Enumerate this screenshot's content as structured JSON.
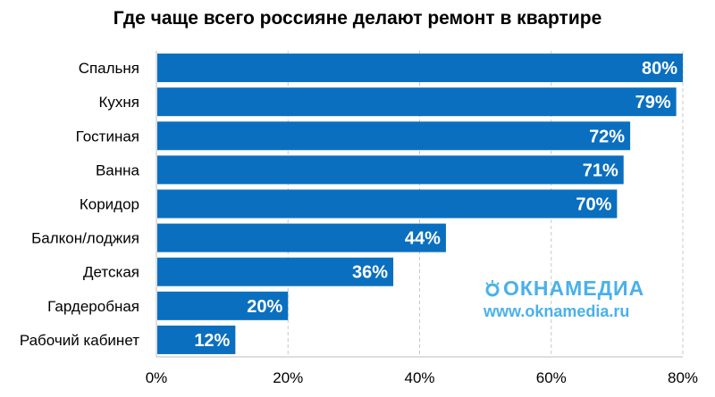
{
  "chart_data": {
    "type": "bar",
    "orientation": "horizontal",
    "title": "Где чаще всего россияне делают ремонт в квартире",
    "categories": [
      "Спальня",
      "Кухня",
      "Гостиная",
      "Ванна",
      "Коридор",
      "Балкон/лоджия",
      "Детская",
      "Гардеробная",
      "Рабочий кабинет"
    ],
    "values": [
      80,
      79,
      72,
      71,
      70,
      44,
      36,
      20,
      12
    ],
    "value_labels": [
      "80%",
      "79%",
      "72%",
      "71%",
      "70%",
      "44%",
      "36%",
      "20%",
      "12%"
    ],
    "x_ticks": [
      0,
      20,
      40,
      60,
      80
    ],
    "x_tick_labels": [
      "0%",
      "20%",
      "40%",
      "60%",
      "80%"
    ],
    "xlim": [
      0,
      80
    ],
    "xlabel": "",
    "ylabel": "",
    "grid": "vertical dashed",
    "bar_color": "#0b6fc0"
  },
  "watermark": {
    "logo": "ОКНАМЕДИА",
    "url": "www.oknamedia.ru",
    "color": "#49b1ea"
  }
}
